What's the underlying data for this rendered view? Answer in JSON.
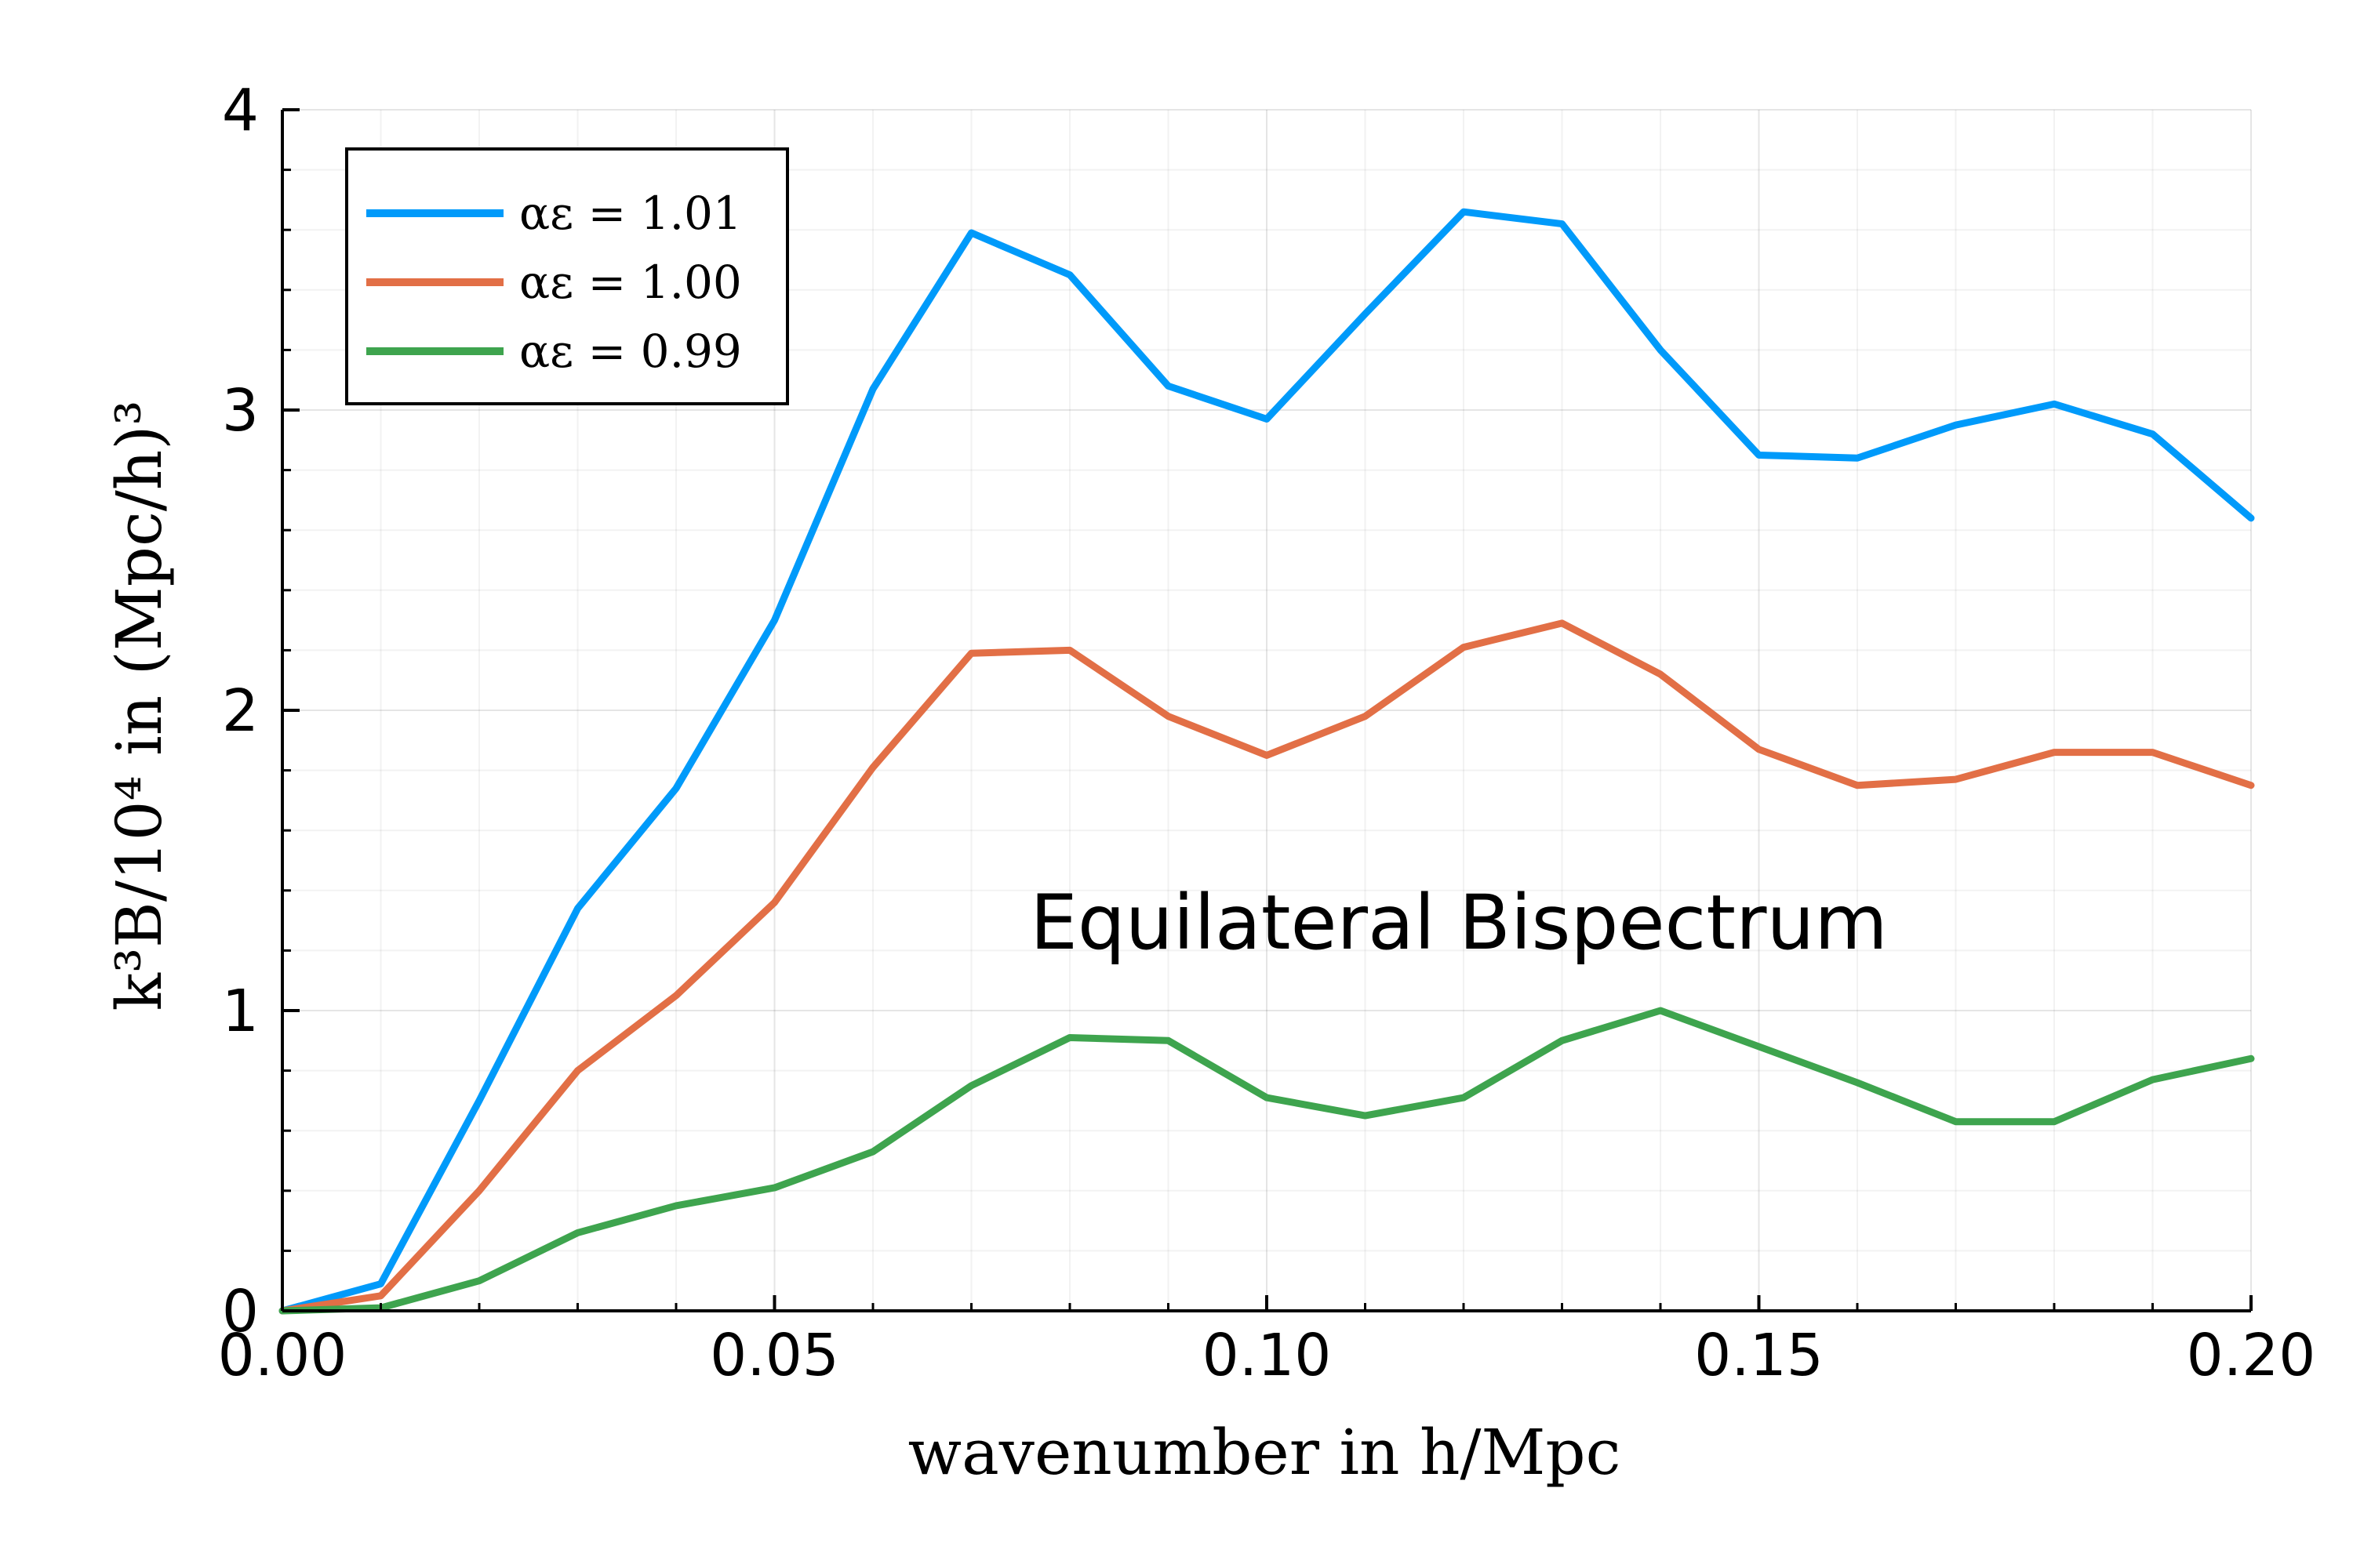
{
  "chart_data": {
    "type": "line",
    "title": "",
    "xlabel": "wavenumber in h/Mpc",
    "ylabel": "k³B/10⁴ in (Mpc/h)³",
    "xlim": [
      0.0,
      0.2
    ],
    "ylim": [
      0,
      4
    ],
    "x_ticks": [
      "0.00",
      "0.05",
      "0.10",
      "0.15",
      "0.20"
    ],
    "y_ticks": [
      "0",
      "1",
      "2",
      "3",
      "4"
    ],
    "grid": true,
    "legend_position": "top-left",
    "annotation": "Equilateral Bispectrum",
    "x": [
      0.0,
      0.01,
      0.02,
      0.03,
      0.04,
      0.05,
      0.06,
      0.07,
      0.08,
      0.09,
      0.1,
      0.11,
      0.12,
      0.13,
      0.14,
      0.15,
      0.16,
      0.17,
      0.18,
      0.19,
      0.2
    ],
    "series": [
      {
        "name": "αε = 1.01",
        "color": "#009AFA",
        "values": [
          0.0,
          0.09,
          0.7,
          1.34,
          1.74,
          2.3,
          3.07,
          3.59,
          3.45,
          3.08,
          2.97,
          3.32,
          3.66,
          3.62,
          3.2,
          2.85,
          2.84,
          2.95,
          3.02,
          2.92,
          2.64
        ]
      },
      {
        "name": "αε = 1.00",
        "color": "#E26F46",
        "values": [
          0.0,
          0.05,
          0.4,
          0.8,
          1.05,
          1.36,
          1.81,
          2.19,
          2.2,
          1.98,
          1.85,
          1.98,
          2.21,
          2.29,
          2.12,
          1.87,
          1.75,
          1.77,
          1.86,
          1.86,
          1.75
        ]
      },
      {
        "name": "αε = 0.99",
        "color": "#3EA44E",
        "values": [
          0.0,
          0.01,
          0.1,
          0.26,
          0.35,
          0.41,
          0.53,
          0.75,
          0.91,
          0.9,
          0.71,
          0.65,
          0.71,
          0.9,
          1.0,
          0.88,
          0.76,
          0.63,
          0.63,
          0.77,
          0.84
        ]
      }
    ]
  }
}
